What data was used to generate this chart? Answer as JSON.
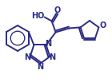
{
  "background_color": "#ffffff",
  "line_color": "#2b2b8a",
  "line_width": 1.4,
  "font_size": 7.0,
  "figsize": [
    1.4,
    1.03
  ],
  "dpi": 100,
  "xlim": [
    0,
    140
  ],
  "ylim": [
    0,
    103
  ]
}
